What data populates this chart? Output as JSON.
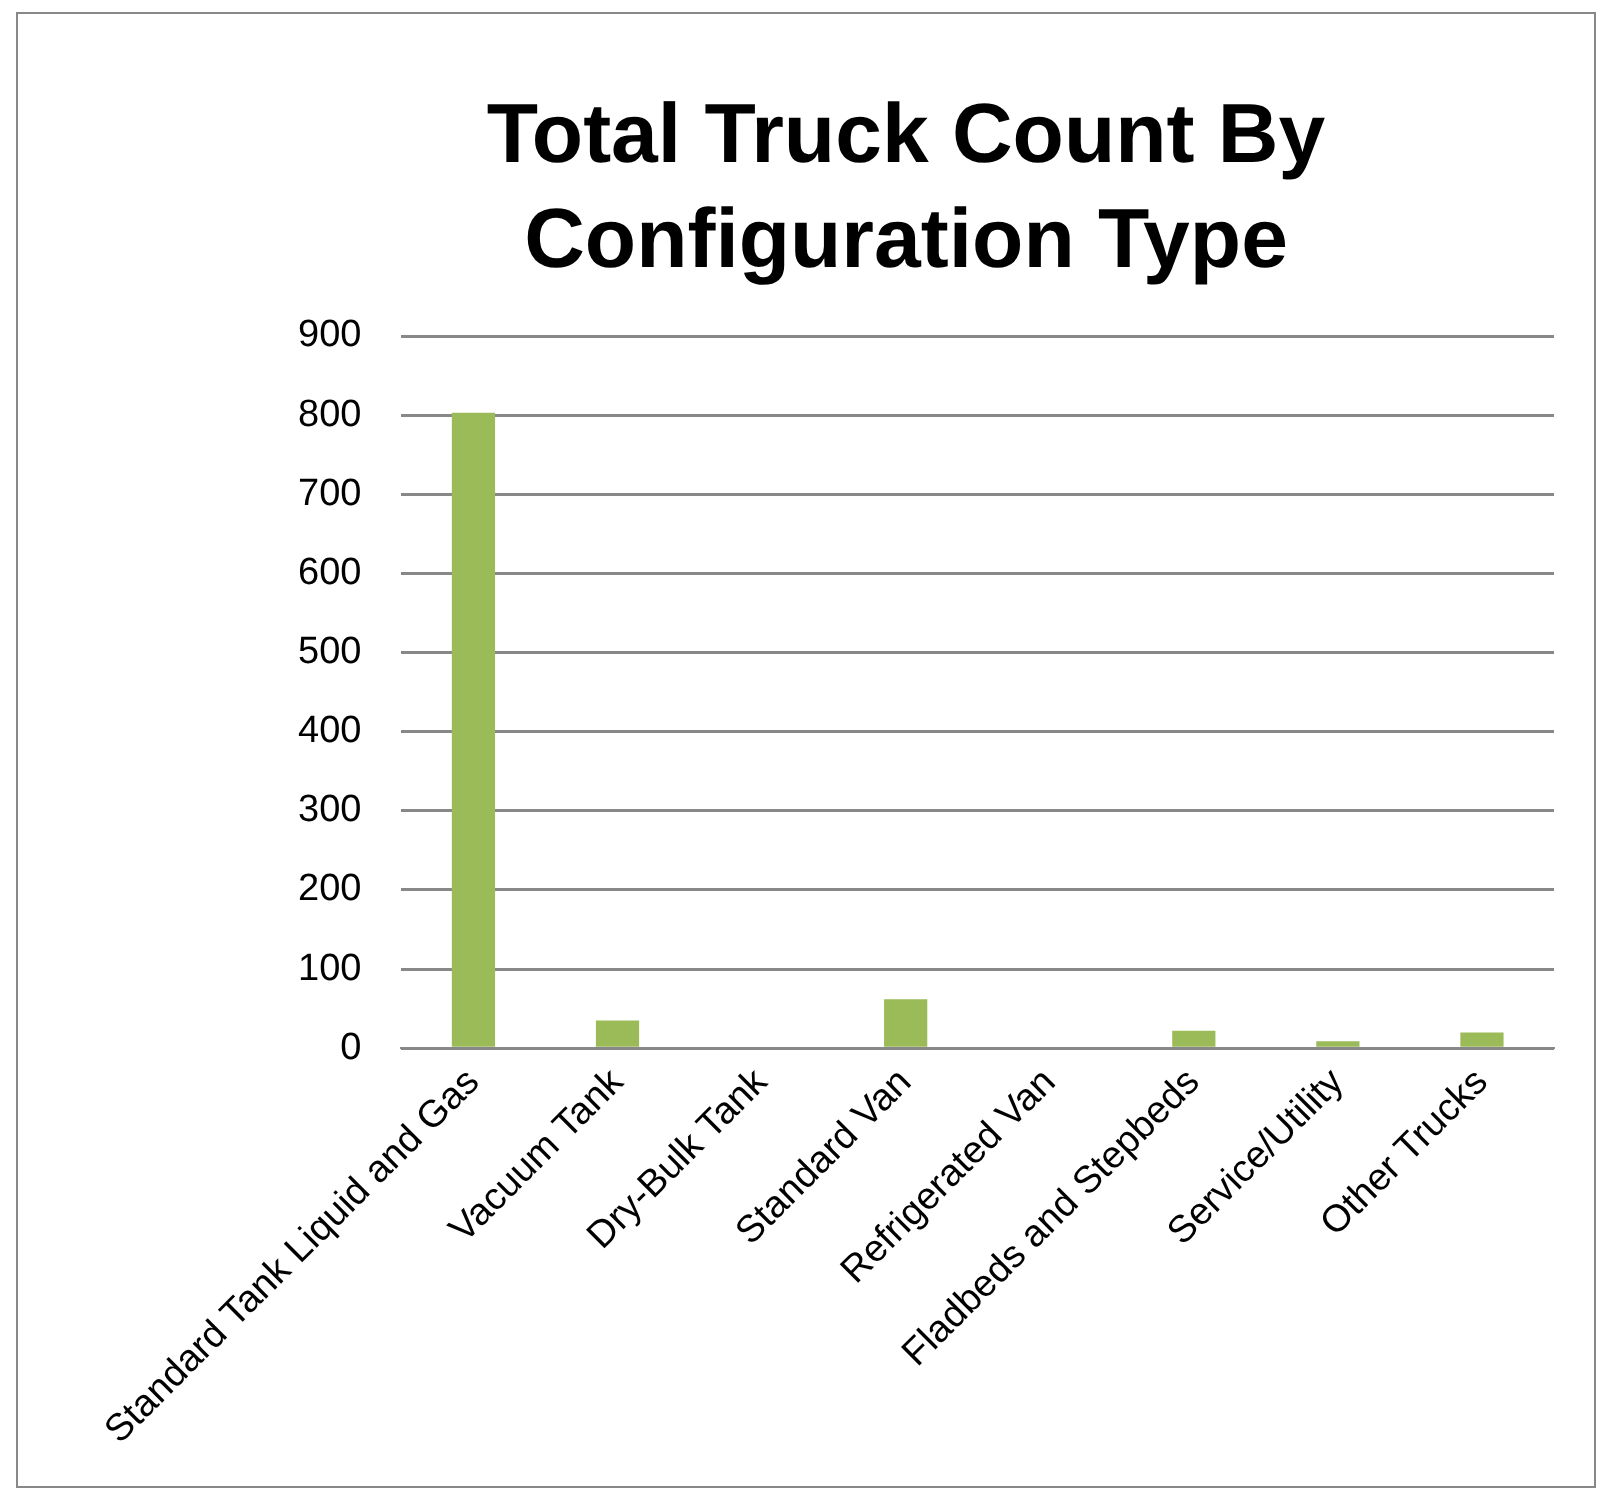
{
  "chart_data": {
    "type": "bar",
    "title": [
      "Total Truck Count By",
      "Configuration Type"
    ],
    "categories": [
      "Standard Tank Liquid and Gas",
      "Vacuum Tank",
      "Dry-Bulk Tank",
      "Standard Van",
      "Refrigerated Van",
      "Fladbeds and Stepbeds",
      "Service/Utility",
      "Other Trucks"
    ],
    "values": [
      803,
      35,
      0,
      62,
      0,
      22,
      9,
      20
    ],
    "color": "#9bbb59",
    "ylim": [
      0,
      900
    ],
    "yticks": [
      0,
      100,
      200,
      300,
      400,
      500,
      600,
      700,
      800,
      900
    ],
    "grid": "y",
    "legend": false
  }
}
